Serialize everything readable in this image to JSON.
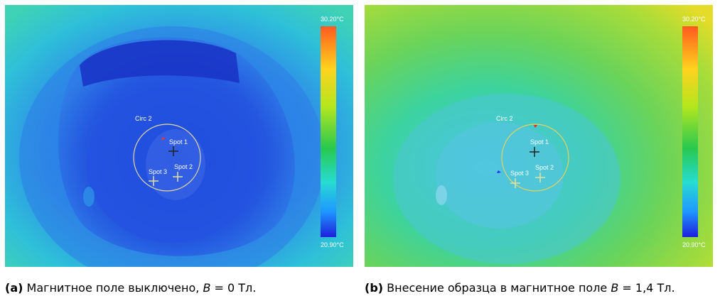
{
  "panels": [
    {
      "id": "a",
      "scale": {
        "max": "30.20°C",
        "min": "20.90°C"
      },
      "markers": {
        "circle": "Circ 2",
        "spot1": "Spot 1",
        "spot2": "Spot 2",
        "spot3": "Spot 3"
      },
      "caption": {
        "tag": "(a)",
        "text": " Магнитное поле выключено, ",
        "var": "B",
        "tail": " = 0 Тл."
      }
    },
    {
      "id": "b",
      "scale": {
        "max": "30.20°C",
        "min": "20.90°C"
      },
      "markers": {
        "circle": "Circ 2",
        "spot1": "Spot 1",
        "spot2": "Spot 2",
        "spot3": "Spot 3"
      },
      "caption": {
        "tag": "(b)",
        "text": " Внесение образца в магнитное поле ",
        "var": "B",
        "tail": " = 1,4 Тл."
      }
    }
  ],
  "colors": {
    "bg_a": "#29c4c3",
    "bg_b": "#5fd07a",
    "dark_blue": "#1a3fd6",
    "mid_blue": "#2b6ae8",
    "cyan": "#3fc9e6",
    "label": "#ffffff",
    "circle_a": "#e2d9a0",
    "circle_b": "#e6d35a"
  }
}
